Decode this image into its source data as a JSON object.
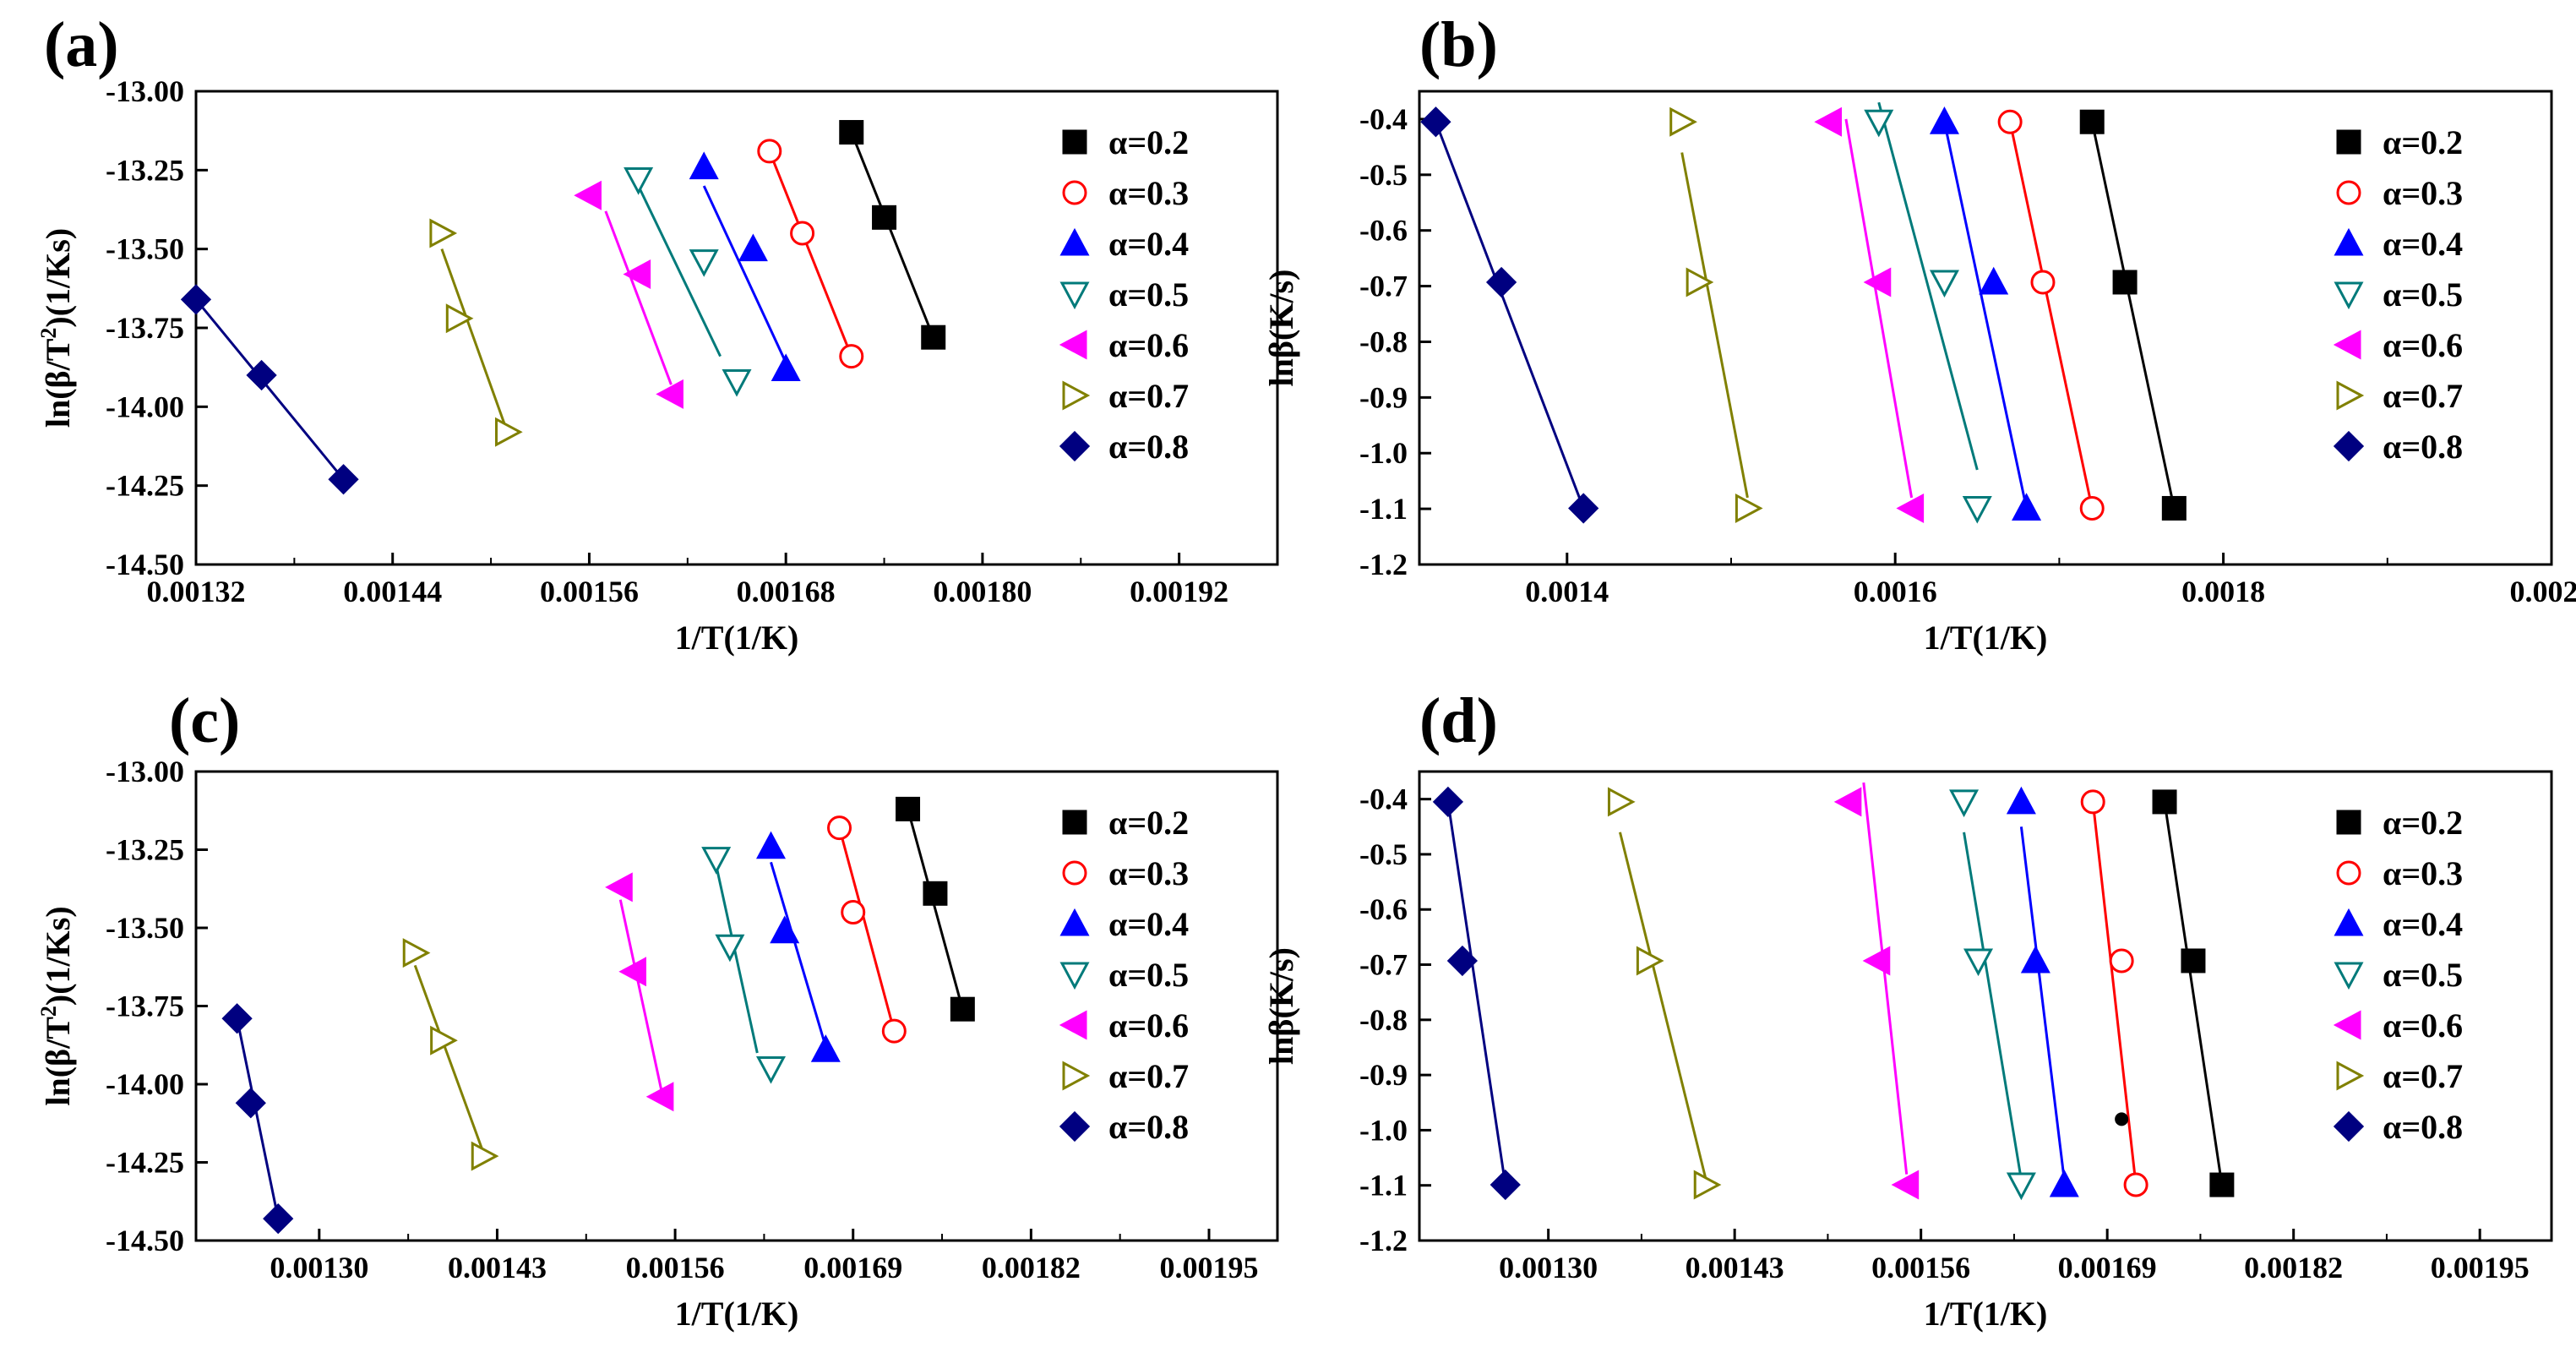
{
  "chart_data": [
    {
      "type": "scatter",
      "panel_label": "(a)",
      "xlabel": "1/T(1/K)",
      "ylabel_parts": [
        "ln(β/T",
        "2",
        ")(1/Ks)"
      ],
      "xlim": [
        0.00132,
        0.00198
      ],
      "ylim": [
        -14.5,
        -13.0
      ],
      "xticks": [
        0.00132,
        0.00144,
        0.00156,
        0.00168,
        0.0018,
        0.00192
      ],
      "xtick_labels": [
        "0.00132",
        "0.00144",
        "0.00156",
        "0.00168",
        "0.00180",
        "0.00192"
      ],
      "yticks": [
        -13.0,
        -13.25,
        -13.5,
        -13.75,
        -14.0,
        -14.25,
        -14.5
      ],
      "ytick_labels": [
        "-13.00",
        "-13.25",
        "-13.50",
        "-13.75",
        "-14.00",
        "-14.25",
        "-14.50"
      ],
      "legend_position": "right",
      "series": [
        {
          "name": "α=0.2",
          "color": "#000000",
          "marker": "square",
          "filled": true,
          "x": [
            0.00172,
            0.00174,
            0.00177
          ],
          "y": [
            -13.13,
            -13.4,
            -13.78
          ],
          "fit": [
            [
              0.00172,
              -13.13
            ],
            [
              0.00177,
              -13.78
            ]
          ]
        },
        {
          "name": "α=0.3",
          "color": "#ff0000",
          "marker": "circle",
          "filled": false,
          "x": [
            0.00167,
            0.00169,
            0.00172
          ],
          "y": [
            -13.19,
            -13.45,
            -13.84
          ],
          "fit": [
            [
              0.00167,
              -13.19
            ],
            [
              0.00172,
              -13.84
            ]
          ]
        },
        {
          "name": "α=0.4",
          "color": "#0000ff",
          "marker": "triangle-up",
          "filled": true,
          "x": [
            0.00163,
            0.00166,
            0.00168
          ],
          "y": [
            -13.24,
            -13.5,
            -13.88
          ],
          "fit": [
            [
              0.00163,
              -13.3
            ],
            [
              0.00168,
              -13.86
            ]
          ]
        },
        {
          "name": "α=0.5",
          "color": "#007a7a",
          "marker": "triangle-down",
          "filled": false,
          "x": [
            0.00159,
            0.00163,
            0.00165
          ],
          "y": [
            -13.28,
            -13.54,
            -13.92
          ],
          "fit": [
            [
              0.00159,
              -13.3
            ],
            [
              0.00164,
              -13.84
            ]
          ]
        },
        {
          "name": "α=0.6",
          "color": "#ff00ff",
          "marker": "triangle-left",
          "filled": true,
          "x": [
            0.00156,
            0.00159,
            0.00161
          ],
          "y": [
            -13.33,
            -13.58,
            -13.96
          ],
          "fit": [
            [
              0.00157,
              -13.38
            ],
            [
              0.00161,
              -13.93
            ]
          ]
        },
        {
          "name": "α=0.7",
          "color": "#808000",
          "marker": "triangle-right",
          "filled": false,
          "x": [
            0.00147,
            0.00148,
            0.00151
          ],
          "y": [
            -13.45,
            -13.72,
            -14.08
          ],
          "fit": [
            [
              0.00147,
              -13.5
            ],
            [
              0.00151,
              -14.08
            ]
          ]
        },
        {
          "name": "α=0.8",
          "color": "#000080",
          "marker": "diamond",
          "filled": true,
          "x": [
            0.00132,
            0.00136,
            0.00141
          ],
          "y": [
            -13.66,
            -13.9,
            -14.23
          ],
          "fit": [
            [
              0.00132,
              -13.66
            ],
            [
              0.00141,
              -14.23
            ]
          ]
        }
      ]
    },
    {
      "type": "scatter",
      "panel_label": "(b)",
      "xlabel": "1/T(1/K)",
      "ylabel_parts": [
        "lnβ(K/s)",
        "",
        ""
      ],
      "xlim": [
        0.00131,
        0.002
      ],
      "ylim": [
        -1.2,
        -0.35
      ],
      "xticks": [
        0.0014,
        0.0016,
        0.0018,
        0.002
      ],
      "xtick_labels": [
        "0.0014",
        "0.0016",
        "0.0018",
        "0.0020"
      ],
      "yticks": [
        -0.4,
        -0.5,
        -0.6,
        -0.7,
        -0.8,
        -0.9,
        -1.0,
        -1.1,
        -1.2
      ],
      "ytick_labels": [
        "-0.4",
        "-0.5",
        "-0.6",
        "-0.7",
        "-0.8",
        "-0.9",
        "-1.0",
        "-1.1",
        "-1.2"
      ],
      "legend_position": "right",
      "series": [
        {
          "name": "α=0.2",
          "color": "#000000",
          "marker": "square",
          "filled": true,
          "x": [
            0.00172,
            0.00174,
            0.00177
          ],
          "y": [
            -0.405,
            -0.693,
            -1.099
          ],
          "fit": [
            [
              0.00172,
              -0.405
            ],
            [
              0.00177,
              -1.099
            ]
          ]
        },
        {
          "name": "α=0.3",
          "color": "#ff0000",
          "marker": "circle",
          "filled": false,
          "x": [
            0.00167,
            0.00169,
            0.00172
          ],
          "y": [
            -0.405,
            -0.693,
            -1.099
          ],
          "fit": [
            [
              0.00167,
              -0.405
            ],
            [
              0.00172,
              -1.099
            ]
          ]
        },
        {
          "name": "α=0.4",
          "color": "#0000ff",
          "marker": "triangle-up",
          "filled": true,
          "x": [
            0.00163,
            0.00166,
            0.00168
          ],
          "y": [
            -0.405,
            -0.693,
            -1.099
          ],
          "fit": [
            [
              0.00163,
              -0.405
            ],
            [
              0.00168,
              -1.099
            ]
          ]
        },
        {
          "name": "α=0.5",
          "color": "#007a7a",
          "marker": "triangle-down",
          "filled": false,
          "x": [
            0.00159,
            0.00163,
            0.00165
          ],
          "y": [
            -0.405,
            -0.693,
            -1.099
          ],
          "fit": [
            [
              0.00159,
              -0.37
            ],
            [
              0.00165,
              -1.03
            ]
          ]
        },
        {
          "name": "α=0.6",
          "color": "#ff00ff",
          "marker": "triangle-left",
          "filled": true,
          "x": [
            0.00156,
            0.00159,
            0.00161
          ],
          "y": [
            -0.405,
            -0.693,
            -1.099
          ],
          "fit": [
            [
              0.00157,
              -0.4
            ],
            [
              0.00161,
              -1.08
            ]
          ]
        },
        {
          "name": "α=0.7",
          "color": "#808000",
          "marker": "triangle-right",
          "filled": false,
          "x": [
            0.00147,
            0.00148,
            0.00151
          ],
          "y": [
            -0.405,
            -0.693,
            -1.099
          ],
          "fit": [
            [
              0.00147,
              -0.46
            ],
            [
              0.00151,
              -1.08
            ]
          ]
        },
        {
          "name": "α=0.8",
          "color": "#000080",
          "marker": "diamond",
          "filled": true,
          "x": [
            0.00132,
            0.00136,
            0.00141
          ],
          "y": [
            -0.405,
            -0.693,
            -1.099
          ],
          "fit": [
            [
              0.00132,
              -0.405
            ],
            [
              0.00141,
              -1.099
            ]
          ]
        }
      ]
    },
    {
      "type": "scatter",
      "panel_label": "(c)",
      "xlabel": "1/T(1/K)",
      "ylabel_parts": [
        "ln(β/T",
        "2",
        ")(1/Ks)"
      ],
      "xlim": [
        0.00121,
        0.002
      ],
      "ylim": [
        -14.5,
        -13.0
      ],
      "xticks": [
        0.0013,
        0.00143,
        0.00156,
        0.00169,
        0.00182,
        0.00195
      ],
      "xtick_labels": [
        "0.00130",
        "0.00143",
        "0.00156",
        "0.00169",
        "0.00182",
        "0.00195"
      ],
      "yticks": [
        -13.0,
        -13.25,
        -13.5,
        -13.75,
        -14.0,
        -14.25,
        -14.5
      ],
      "ytick_labels": [
        "-13.00",
        "-13.25",
        "-13.50",
        "-13.75",
        "-14.00",
        "-14.25",
        "-14.50"
      ],
      "legend_position": "right",
      "series": [
        {
          "name": "α=0.2",
          "color": "#000000",
          "marker": "square",
          "filled": true,
          "x": [
            0.00173,
            0.00175,
            0.00177
          ],
          "y": [
            -13.12,
            -13.39,
            -13.76
          ],
          "fit": [
            [
              0.00173,
              -13.12
            ],
            [
              0.00177,
              -13.76
            ]
          ]
        },
        {
          "name": "α=0.3",
          "color": "#ff0000",
          "marker": "circle",
          "filled": false,
          "x": [
            0.00168,
            0.00169,
            0.00172
          ],
          "y": [
            -13.18,
            -13.45,
            -13.83
          ],
          "fit": [
            [
              0.00168,
              -13.18
            ],
            [
              0.00172,
              -13.83
            ]
          ]
        },
        {
          "name": "α=0.4",
          "color": "#0000ff",
          "marker": "triangle-up",
          "filled": true,
          "x": [
            0.00163,
            0.00164,
            0.00167
          ],
          "y": [
            -13.24,
            -13.51,
            -13.89
          ],
          "fit": [
            [
              0.00163,
              -13.29
            ],
            [
              0.00167,
              -13.88
            ]
          ]
        },
        {
          "name": "α=0.5",
          "color": "#007a7a",
          "marker": "triangle-down",
          "filled": false,
          "x": [
            0.00159,
            0.0016,
            0.00163
          ],
          "y": [
            -13.28,
            -13.56,
            -13.95
          ],
          "fit": [
            [
              0.00159,
              -13.3
            ],
            [
              0.00162,
              -13.9
            ]
          ]
        },
        {
          "name": "α=0.6",
          "color": "#ff00ff",
          "marker": "triangle-left",
          "filled": true,
          "x": [
            0.00152,
            0.00153,
            0.00155
          ],
          "y": [
            -13.37,
            -13.64,
            -14.04
          ],
          "fit": [
            [
              0.00152,
              -13.41
            ],
            [
              0.00155,
              -14.02
            ]
          ]
        },
        {
          "name": "α=0.7",
          "color": "#808000",
          "marker": "triangle-right",
          "filled": false,
          "x": [
            0.00137,
            0.00139,
            0.00142
          ],
          "y": [
            -13.58,
            -13.86,
            -14.23
          ],
          "fit": [
            [
              0.00137,
              -13.62
            ],
            [
              0.00142,
              -14.22
            ]
          ]
        },
        {
          "name": "α=0.8",
          "color": "#000080",
          "marker": "diamond",
          "filled": true,
          "x": [
            0.00124,
            0.00125,
            0.00127
          ],
          "y": [
            -13.79,
            -14.06,
            -14.43
          ],
          "fit": [
            [
              0.00124,
              -13.79
            ],
            [
              0.00127,
              -14.43
            ]
          ]
        }
      ]
    },
    {
      "type": "scatter",
      "panel_label": "(d)",
      "xlabel": "1/T(1/K)",
      "ylabel_parts": [
        "lnβ(K/s)",
        "",
        ""
      ],
      "xlim": [
        0.00121,
        0.002
      ],
      "ylim": [
        -1.2,
        -0.35
      ],
      "xticks": [
        0.0013,
        0.00143,
        0.00156,
        0.00169,
        0.00182,
        0.00195
      ],
      "xtick_labels": [
        "0.00130",
        "0.00143",
        "0.00156",
        "0.00169",
        "0.00182",
        "0.00195"
      ],
      "yticks": [
        -0.4,
        -0.5,
        -0.6,
        -0.7,
        -0.8,
        -0.9,
        -1.0,
        -1.1,
        -1.2
      ],
      "ytick_labels": [
        "-0.4",
        "-0.5",
        "-0.6",
        "-0.7",
        "-0.8",
        "-0.9",
        "-1.0",
        "-1.1",
        "-1.2"
      ],
      "legend_position": "right",
      "series": [
        {
          "name": "α=0.2",
          "color": "#000000",
          "marker": "square",
          "filled": true,
          "x": [
            0.00173,
            0.00175,
            0.00177
          ],
          "y": [
            -0.405,
            -0.693,
            -1.099
          ],
          "fit": [
            [
              0.00173,
              -0.405
            ],
            [
              0.00177,
              -1.099
            ]
          ]
        },
        {
          "name": "α=0.3",
          "color": "#ff0000",
          "marker": "circle",
          "filled": false,
          "x": [
            0.00168,
            0.0017,
            0.00171
          ],
          "y": [
            -0.405,
            -0.693,
            -1.099
          ],
          "fit": [
            [
              0.00168,
              -0.405
            ],
            [
              0.00171,
              -1.099
            ]
          ]
        },
        {
          "name": "α=0.4",
          "color": "#0000ff",
          "marker": "triangle-up",
          "filled": true,
          "x": [
            0.00163,
            0.00164,
            0.00166
          ],
          "y": [
            -0.405,
            -0.693,
            -1.099
          ],
          "fit": [
            [
              0.00163,
              -0.45
            ],
            [
              0.00166,
              -1.09
            ]
          ]
        },
        {
          "name": "α=0.5",
          "color": "#007a7a",
          "marker": "triangle-down",
          "filled": false,
          "x": [
            0.00159,
            0.0016,
            0.00163
          ],
          "y": [
            -0.405,
            -0.693,
            -1.099
          ],
          "fit": [
            [
              0.00159,
              -0.46
            ],
            [
              0.00163,
              -1.09
            ]
          ]
        },
        {
          "name": "α=0.6",
          "color": "#ff00ff",
          "marker": "triangle-left",
          "filled": true,
          "x": [
            0.00151,
            0.00153,
            0.00155
          ],
          "y": [
            -0.405,
            -0.693,
            -1.099
          ],
          "fit": [
            [
              0.00152,
              -0.37
            ],
            [
              0.00155,
              -1.08
            ]
          ]
        },
        {
          "name": "α=0.7",
          "color": "#808000",
          "marker": "triangle-right",
          "filled": false,
          "x": [
            0.00135,
            0.00137,
            0.00141
          ],
          "y": [
            -0.405,
            -0.693,
            -1.099
          ],
          "fit": [
            [
              0.00135,
              -0.46
            ],
            [
              0.00141,
              -1.09
            ]
          ]
        },
        {
          "name": "α=0.8",
          "color": "#000080",
          "marker": "diamond",
          "filled": true,
          "x": [
            0.00123,
            0.00124,
            0.00127
          ],
          "y": [
            -0.405,
            -0.693,
            -1.099
          ],
          "fit": [
            [
              0.00123,
              -0.405
            ],
            [
              0.00127,
              -1.099
            ]
          ]
        }
      ],
      "annotations": [
        {
          "type": "dot",
          "x": 0.0017,
          "y": -0.98,
          "color": "#000000"
        }
      ]
    }
  ]
}
